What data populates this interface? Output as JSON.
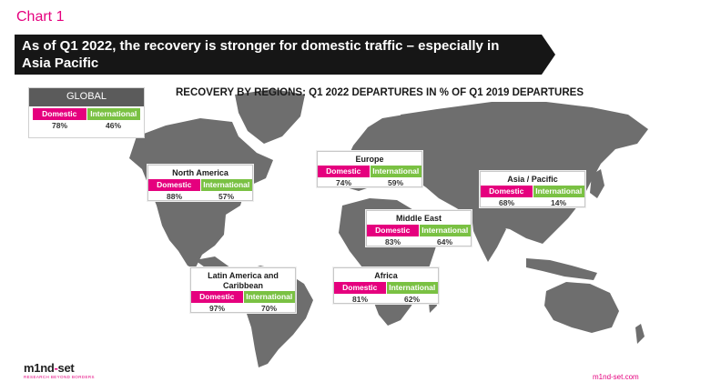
{
  "chart_label": "Chart 1",
  "headline": {
    "line1": "As of Q1 2022, the recovery is stronger for domestic traffic – especially in",
    "line2": "Asia Pacific"
  },
  "colors": {
    "domestic": "#e5007e",
    "international": "#7ac143",
    "map": "#6e6e6e",
    "banner": "#161616"
  },
  "chart_data": {
    "type": "table",
    "title": "RECOVERY BY REGIONS: Q1 2022 DEPARTURES IN % OF Q1 2019 DEPARTURES",
    "columns": [
      "Domestic",
      "International"
    ],
    "global": {
      "label": "GLOBAL",
      "domestic": "78%",
      "international": "46%"
    },
    "regions": [
      {
        "name": "North America",
        "domestic": "88%",
        "international": "57%"
      },
      {
        "name": "Europe",
        "domestic": "74%",
        "international": "59%"
      },
      {
        "name": "Asia / Pacific",
        "domestic": "68%",
        "international": "14%"
      },
      {
        "name": "Middle East",
        "domestic": "83%",
        "international": "64%"
      },
      {
        "name": "Latin America and Caribbean",
        "domestic": "97%",
        "international": "70%"
      },
      {
        "name": "Africa",
        "domestic": "81%",
        "international": "62%"
      }
    ]
  },
  "footer": {
    "logo_left": "m1nd",
    "logo_x": "-",
    "logo_right": "set",
    "logo_tagline": "RESEARCH BEYOND BORDERS",
    "website": "m1nd-set.com"
  }
}
